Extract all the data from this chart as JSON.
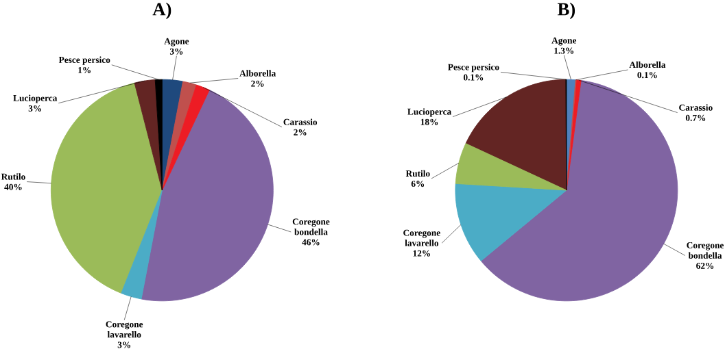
{
  "chart_data": [
    {
      "type": "pie",
      "title": "A)",
      "categories": [
        "Agone",
        "Alborella",
        "Carassio",
        "Coregone bondella",
        "Coregone lavarello",
        "Rutilo",
        "Lucioperca",
        "Pesce persico"
      ],
      "values": [
        3,
        2,
        2,
        46,
        3,
        40,
        3,
        1
      ],
      "value_labels": [
        "3%",
        "2%",
        "2%",
        "46%",
        "3%",
        "40%",
        "3%",
        "1%"
      ],
      "colors": [
        "#1f497d",
        "#c0504d",
        "#ed1c24",
        "#8064a2",
        "#4bacc6",
        "#9bbb59",
        "#632523",
        "#000000"
      ]
    },
    {
      "type": "pie",
      "title": "B)",
      "categories": [
        "Agone",
        "Alborella",
        "Carassio",
        "Coregone bondella",
        "Coregone lavarello",
        "Rutilo",
        "Lucioperca",
        "Pesce persico"
      ],
      "values": [
        1.3,
        0.1,
        0.7,
        62,
        12,
        6,
        18,
        0.1
      ],
      "value_labels": [
        "1.3%",
        "0.1%",
        "0.7%",
        "62%",
        "12%",
        "6%",
        "18%",
        "0.1%"
      ],
      "colors": [
        "#4f81bd",
        "#c0504d",
        "#ed1c24",
        "#8064a2",
        "#4bacc6",
        "#9bbb59",
        "#632523",
        "#000000"
      ]
    }
  ]
}
